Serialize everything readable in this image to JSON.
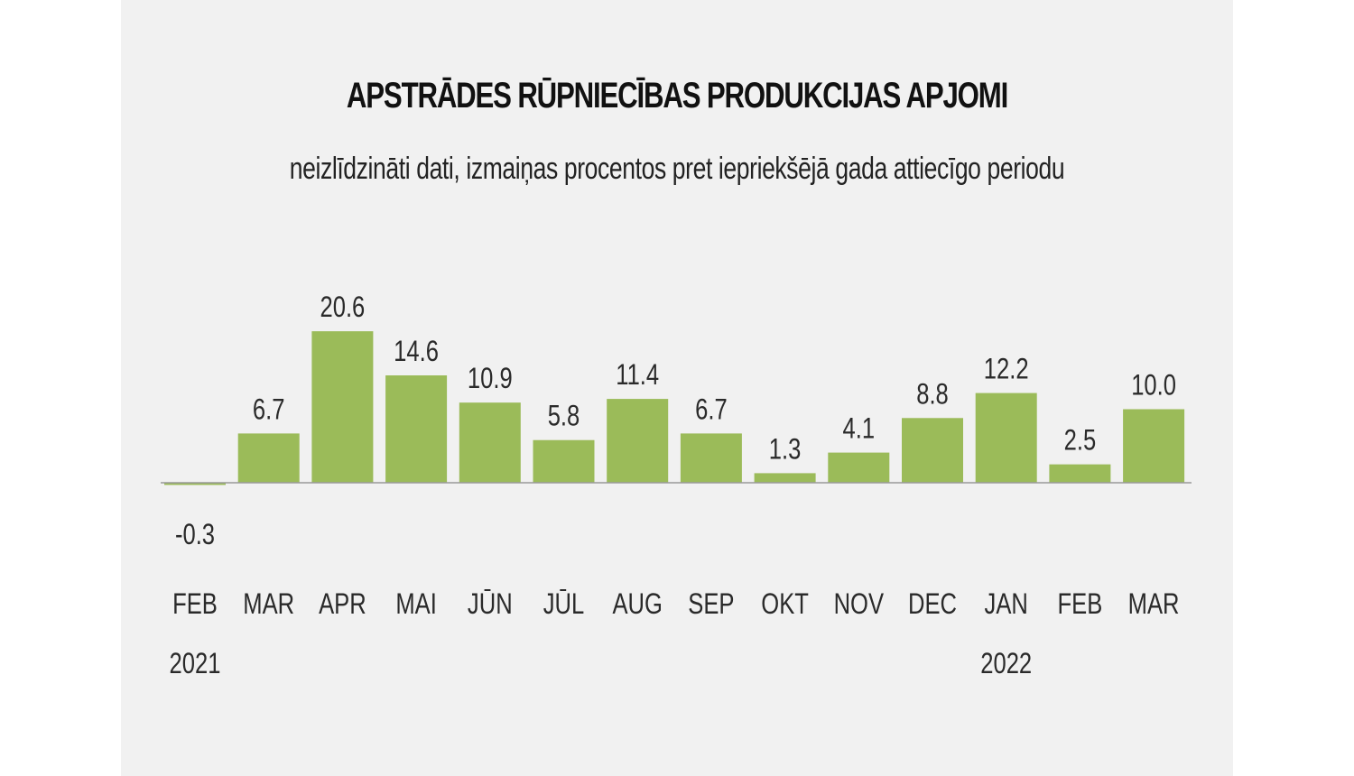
{
  "title": "APSTRĀDES RŪPNIECĪBAS PRODUKCIJAS APJOMI",
  "subtitle": "neizlīdzināti dati, izmaiņas procentos pret iepriekšējā gada attiecīgo periodu",
  "chart_data": {
    "type": "bar",
    "categories": [
      "FEB",
      "MAR",
      "APR",
      "MAI",
      "JŪN",
      "JŪL",
      "AUG",
      "SEP",
      "OKT",
      "NOV",
      "DEC",
      "JAN",
      "FEB",
      "MAR"
    ],
    "year_labels": [
      "2021",
      "",
      "",
      "",
      "",
      "",
      "",
      "",
      "",
      "",
      "",
      "2022",
      "",
      ""
    ],
    "values": [
      -0.3,
      6.7,
      20.6,
      14.6,
      10.9,
      5.8,
      11.4,
      6.7,
      1.3,
      4.1,
      8.8,
      12.2,
      2.5,
      10.0
    ],
    "value_labels": [
      "-0.3",
      "6.7",
      "20.6",
      "14.6",
      "10.9",
      "5.8",
      "11.4",
      "6.7",
      "1.3",
      "4.1",
      "8.8",
      "12.2",
      "2.5",
      "10.0"
    ],
    "bar_color": "#9bbb59",
    "axis_color": "#999999"
  }
}
